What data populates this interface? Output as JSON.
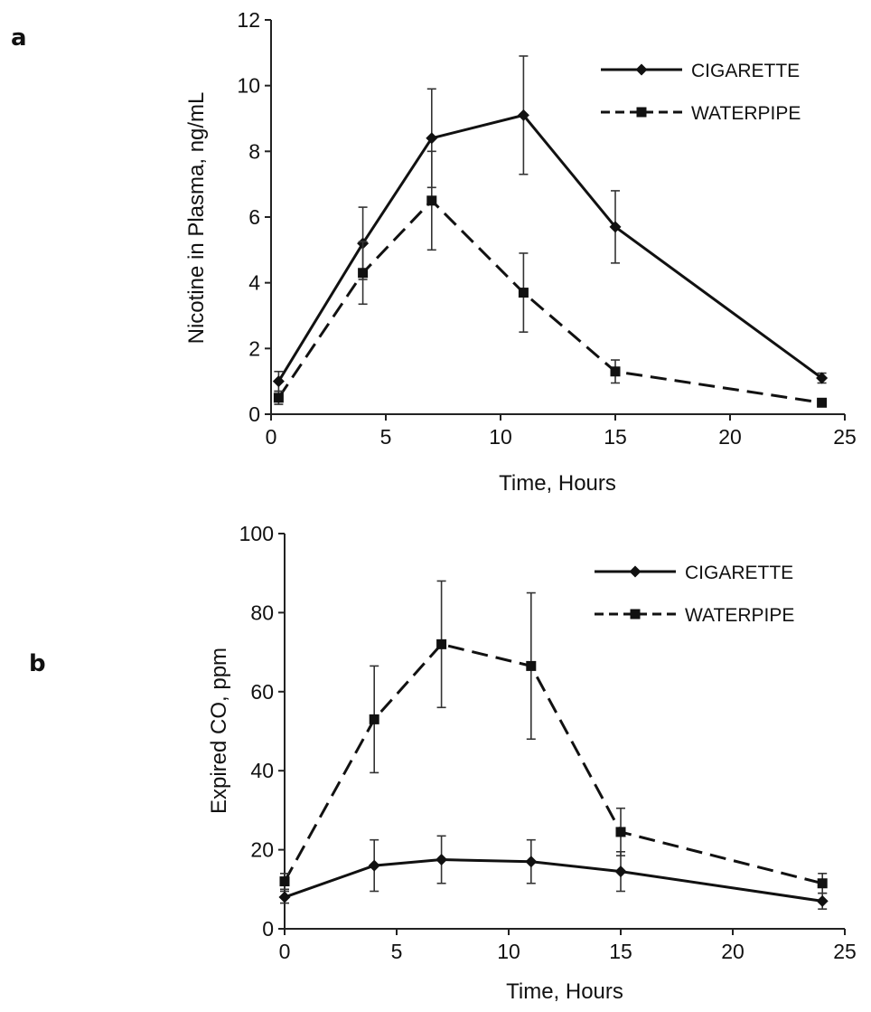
{
  "chart_data": [
    {
      "panel_label": "a",
      "type": "line",
      "ylabel": "Nicotine in Plasma, ng/mL",
      "xlabel": "Time, Hours",
      "xlim": [
        0,
        25
      ],
      "ylim": [
        0,
        12
      ],
      "xticks": [
        0,
        5,
        10,
        15,
        20,
        25
      ],
      "yticks": [
        0,
        2,
        4,
        6,
        8,
        10,
        12
      ],
      "legend_position": "top-right",
      "x": [
        0.33,
        4,
        7,
        11,
        15,
        24
      ],
      "series": [
        {
          "name": "CIGARETTE",
          "marker": "diamond",
          "line": "solid",
          "values": [
            1.0,
            5.2,
            8.4,
            9.1,
            5.7,
            1.1
          ],
          "errors": [
            0.3,
            1.1,
            1.5,
            1.8,
            1.1,
            0.15
          ]
        },
        {
          "name": "WATERPIPE",
          "marker": "square",
          "line": "dashed",
          "values": [
            0.5,
            4.3,
            6.5,
            3.7,
            1.3,
            0.35
          ],
          "errors": [
            0.2,
            0.95,
            1.5,
            1.2,
            0.35,
            0.1
          ]
        }
      ]
    },
    {
      "panel_label": "b",
      "type": "line",
      "ylabel": "Expired CO, ppm",
      "xlabel": "Time, Hours",
      "xlim": [
        0,
        25
      ],
      "ylim": [
        0,
        100
      ],
      "xticks": [
        0,
        5,
        10,
        15,
        20,
        25
      ],
      "yticks": [
        0,
        20,
        40,
        60,
        80,
        100
      ],
      "legend_position": "top-right",
      "x": [
        0,
        4,
        7,
        11,
        15,
        24
      ],
      "series": [
        {
          "name": "CIGARETTE",
          "marker": "diamond",
          "line": "solid",
          "values": [
            8,
            16,
            17.5,
            17,
            14.5,
            7
          ],
          "errors": [
            1.5,
            6.5,
            6,
            5.5,
            5,
            2
          ]
        },
        {
          "name": "WATERPIPE",
          "marker": "square",
          "line": "dashed",
          "values": [
            12,
            53,
            72,
            66.5,
            24.5,
            11.5
          ],
          "errors": [
            2,
            13.5,
            16,
            18.5,
            6,
            2.5
          ]
        }
      ]
    }
  ]
}
